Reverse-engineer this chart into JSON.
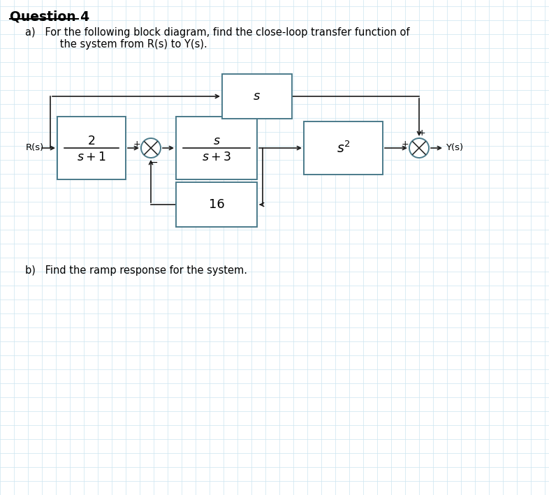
{
  "title": "Question 4",
  "part_a_line1": "a)   For the following block diagram, find the close-loop transfer function of",
  "part_a_line2": "      the system from R(s) to Y(s).",
  "part_b": "b)   Find the ramp response for the system.",
  "bg_color": "#ffffff",
  "grid_color": "#cce5f0",
  "block_edge_color": "#4a7a8a",
  "block_fill_color": "#ffffff",
  "line_color": "#1a1a1a",
  "text_color": "#000000",
  "label_Rs": "R(s)",
  "label_Ys": "Y(s)",
  "block1_num": "2",
  "block1_den": "s + 1",
  "block2_num": "s",
  "block2_den": "s + 3",
  "block3_label": "$s^2$",
  "block_top_label": "s",
  "block16_label": "16",
  "sum1_plus": "+",
  "sum1_minus": "−",
  "sum2_plus_left": "+",
  "sum2_plus_top": "+"
}
